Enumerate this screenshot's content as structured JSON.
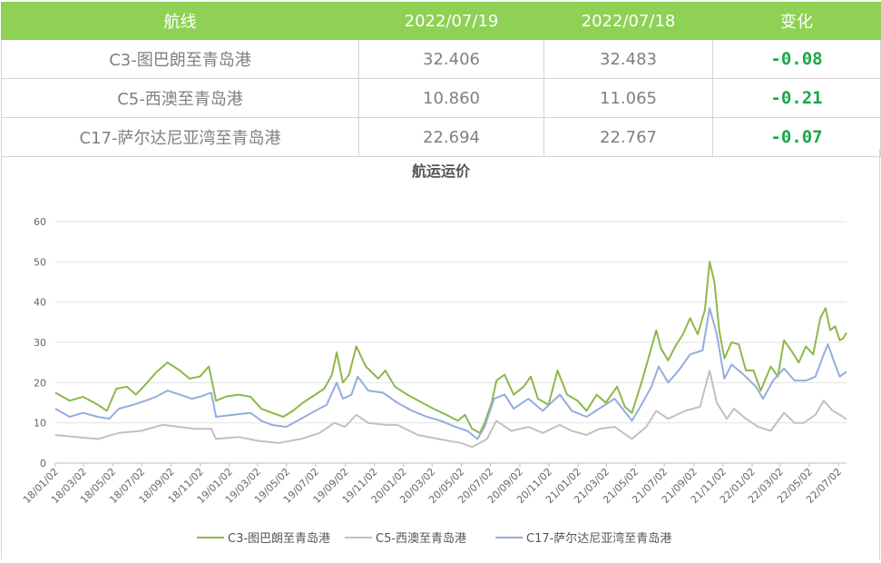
{
  "table": {
    "headers": [
      "航线",
      "2022/07/19",
      "2022/07/18",
      "变化"
    ],
    "rows": [
      {
        "route": "C3-图巴朗至青岛港",
        "current": "32.406",
        "previous": "32.483",
        "change": "-0.08"
      },
      {
        "route": "C5-西澳至青岛港",
        "current": "10.860",
        "previous": "11.065",
        "change": "-0.21"
      },
      {
        "route": "C17-萨尔达尼亚湾至青岛港",
        "current": "22.694",
        "previous": "22.767",
        "change": "-0.07"
      }
    ],
    "header_color": "#8ed155",
    "change_color": "#18a84a"
  },
  "chart_data": {
    "type": "line",
    "title": "航运运价",
    "ylim": [
      0,
      60
    ],
    "yticks": [
      "0",
      "10",
      "20",
      "30",
      "40",
      "50",
      "60"
    ],
    "xticks": [
      "18/01/02",
      "18/03/02",
      "18/05/02",
      "18/07/02",
      "18/09/02",
      "18/11/02",
      "19/01/02",
      "19/03/02",
      "19/05/02",
      "19/07/02",
      "19/09/02",
      "19/11/02",
      "20/01/02",
      "20/03/02",
      "20/05/02",
      "20/07/02",
      "20/09/02",
      "20/11/02",
      "21/01/02",
      "21/03/02",
      "21/05/02",
      "21/07/02",
      "21/09/02",
      "21/11/02",
      "22/01/02",
      "22/03/02",
      "22/05/02",
      "22/07/02"
    ],
    "x_start": "2018-01-02",
    "x_end": "2022-07-19",
    "grid": true,
    "legend_position": "bottom",
    "series": [
      {
        "name": "C3-图巴朗至青岛港",
        "color": "#8db84a",
        "points": [
          [
            "2018-01-02",
            17.5
          ],
          [
            "2018-02-01",
            15.5
          ],
          [
            "2018-03-01",
            16.5
          ],
          [
            "2018-04-01",
            14.5
          ],
          [
            "2018-04-20",
            13.0
          ],
          [
            "2018-05-10",
            18.5
          ],
          [
            "2018-06-01",
            19.0
          ],
          [
            "2018-06-20",
            17.0
          ],
          [
            "2018-07-10",
            19.5
          ],
          [
            "2018-08-01",
            22.5
          ],
          [
            "2018-08-25",
            25.0
          ],
          [
            "2018-09-20",
            23.0
          ],
          [
            "2018-10-10",
            21.0
          ],
          [
            "2018-11-01",
            21.5
          ],
          [
            "2018-11-20",
            24.0
          ],
          [
            "2018-12-05",
            15.5
          ],
          [
            "2018-12-25",
            16.5
          ],
          [
            "2019-01-20",
            17.0
          ],
          [
            "2019-02-15",
            16.5
          ],
          [
            "2019-03-10",
            13.5
          ],
          [
            "2019-04-01",
            12.5
          ],
          [
            "2019-04-25",
            11.5
          ],
          [
            "2019-05-15",
            13.0
          ],
          [
            "2019-06-05",
            15.0
          ],
          [
            "2019-07-01",
            17.0
          ],
          [
            "2019-07-20",
            18.5
          ],
          [
            "2019-08-05",
            22.0
          ],
          [
            "2019-08-15",
            27.5
          ],
          [
            "2019-08-28",
            20.0
          ],
          [
            "2019-09-10",
            22.0
          ],
          [
            "2019-09-25",
            29.0
          ],
          [
            "2019-10-15",
            24.0
          ],
          [
            "2019-11-10",
            21.0
          ],
          [
            "2019-11-25",
            23.0
          ],
          [
            "2019-12-15",
            19.0
          ],
          [
            "2020-01-10",
            17.0
          ],
          [
            "2020-02-10",
            15.0
          ],
          [
            "2020-03-05",
            13.5
          ],
          [
            "2020-04-01",
            12.0
          ],
          [
            "2020-04-25",
            10.5
          ],
          [
            "2020-05-10",
            12.0
          ],
          [
            "2020-05-25",
            8.5
          ],
          [
            "2020-06-10",
            7.5
          ],
          [
            "2020-06-20",
            10.0
          ],
          [
            "2020-07-05",
            15.0
          ],
          [
            "2020-07-15",
            20.5
          ],
          [
            "2020-08-01",
            22.0
          ],
          [
            "2020-08-20",
            17.0
          ],
          [
            "2020-09-10",
            19.0
          ],
          [
            "2020-09-25",
            21.5
          ],
          [
            "2020-10-10",
            16.0
          ],
          [
            "2020-11-01",
            14.5
          ],
          [
            "2020-11-20",
            23.0
          ],
          [
            "2020-12-10",
            17.0
          ],
          [
            "2021-01-01",
            15.5
          ],
          [
            "2021-01-20",
            13.0
          ],
          [
            "2021-02-10",
            17.0
          ],
          [
            "2021-03-01",
            15.0
          ],
          [
            "2021-03-25",
            19.0
          ],
          [
            "2021-04-10",
            14.0
          ],
          [
            "2021-04-25",
            12.5
          ],
          [
            "2021-05-15",
            20.0
          ],
          [
            "2021-06-01",
            27.0
          ],
          [
            "2021-06-15",
            33.0
          ],
          [
            "2021-06-25",
            28.5
          ],
          [
            "2021-07-10",
            25.5
          ],
          [
            "2021-07-25",
            29.0
          ],
          [
            "2021-08-10",
            32.0
          ],
          [
            "2021-08-25",
            36.0
          ],
          [
            "2021-09-10",
            32.0
          ],
          [
            "2021-09-25",
            38.0
          ],
          [
            "2021-10-05",
            50.0
          ],
          [
            "2021-10-15",
            45.0
          ],
          [
            "2021-10-25",
            33.0
          ],
          [
            "2021-11-05",
            26.0
          ],
          [
            "2021-11-20",
            30.0
          ],
          [
            "2021-12-05",
            29.5
          ],
          [
            "2021-12-20",
            23.0
          ],
          [
            "2022-01-05",
            23.0
          ],
          [
            "2022-01-20",
            18.0
          ],
          [
            "2022-02-10",
            24.0
          ],
          [
            "2022-02-25",
            21.5
          ],
          [
            "2022-03-10",
            30.5
          ],
          [
            "2022-03-25",
            28.0
          ],
          [
            "2022-04-10",
            25.0
          ],
          [
            "2022-04-25",
            29.0
          ],
          [
            "2022-05-10",
            27.0
          ],
          [
            "2022-05-25",
            36.0
          ],
          [
            "2022-06-05",
            38.5
          ],
          [
            "2022-06-15",
            33.0
          ],
          [
            "2022-06-25",
            34.0
          ],
          [
            "2022-07-05",
            30.5
          ],
          [
            "2022-07-12",
            31.0
          ],
          [
            "2022-07-19",
            32.4
          ]
        ]
      },
      {
        "name": "C5-西澳至青岛港",
        "color": "#c1c1c1",
        "points": [
          [
            "2018-01-02",
            7.0
          ],
          [
            "2018-02-15",
            6.5
          ],
          [
            "2018-04-01",
            6.0
          ],
          [
            "2018-05-15",
            7.5
          ],
          [
            "2018-07-01",
            8.0
          ],
          [
            "2018-08-15",
            9.5
          ],
          [
            "2018-09-20",
            9.0
          ],
          [
            "2018-10-20",
            8.5
          ],
          [
            "2018-11-25",
            8.5
          ],
          [
            "2018-12-05",
            6.0
          ],
          [
            "2019-01-20",
            6.5
          ],
          [
            "2019-03-05",
            5.5
          ],
          [
            "2019-04-15",
            5.0
          ],
          [
            "2019-06-01",
            6.0
          ],
          [
            "2019-07-10",
            7.5
          ],
          [
            "2019-08-10",
            10.0
          ],
          [
            "2019-09-01",
            9.0
          ],
          [
            "2019-09-25",
            12.0
          ],
          [
            "2019-10-20",
            10.0
          ],
          [
            "2019-11-25",
            9.5
          ],
          [
            "2019-12-20",
            9.5
          ],
          [
            "2020-02-01",
            7.0
          ],
          [
            "2020-03-15",
            6.0
          ],
          [
            "2020-05-01",
            5.0
          ],
          [
            "2020-05-25",
            4.0
          ],
          [
            "2020-06-10",
            5.0
          ],
          [
            "2020-06-25",
            6.0
          ],
          [
            "2020-07-15",
            10.5
          ],
          [
            "2020-08-15",
            8.0
          ],
          [
            "2020-09-20",
            9.0
          ],
          [
            "2020-10-20",
            7.5
          ],
          [
            "2020-11-25",
            9.5
          ],
          [
            "2020-12-20",
            8.0
          ],
          [
            "2021-01-20",
            7.0
          ],
          [
            "2021-02-15",
            8.5
          ],
          [
            "2021-03-20",
            9.0
          ],
          [
            "2021-04-25",
            6.0
          ],
          [
            "2021-05-25",
            9.0
          ],
          [
            "2021-06-15",
            13.0
          ],
          [
            "2021-07-10",
            11.0
          ],
          [
            "2021-08-15",
            13.0
          ],
          [
            "2021-09-15",
            14.0
          ],
          [
            "2021-10-05",
            23.0
          ],
          [
            "2021-10-20",
            15.0
          ],
          [
            "2021-11-10",
            11.0
          ],
          [
            "2021-11-25",
            13.5
          ],
          [
            "2021-12-20",
            11.0
          ],
          [
            "2022-01-15",
            9.0
          ],
          [
            "2022-02-10",
            8.0
          ],
          [
            "2022-03-10",
            12.5
          ],
          [
            "2022-04-01",
            10.0
          ],
          [
            "2022-04-20",
            10.0
          ],
          [
            "2022-05-15",
            12.0
          ],
          [
            "2022-06-01",
            15.5
          ],
          [
            "2022-06-20",
            13.0
          ],
          [
            "2022-07-05",
            12.0
          ],
          [
            "2022-07-19",
            10.9
          ]
        ]
      },
      {
        "name": "C17-萨尔达尼亚湾至青岛港",
        "color": "#93aedb",
        "points": [
          [
            "2018-01-02",
            13.5
          ],
          [
            "2018-02-01",
            11.5
          ],
          [
            "2018-03-01",
            12.5
          ],
          [
            "2018-04-01",
            11.5
          ],
          [
            "2018-04-25",
            11.0
          ],
          [
            "2018-05-15",
            13.5
          ],
          [
            "2018-06-15",
            14.5
          ],
          [
            "2018-07-10",
            15.5
          ],
          [
            "2018-08-01",
            16.5
          ],
          [
            "2018-08-25",
            18.0
          ],
          [
            "2018-09-20",
            17.0
          ],
          [
            "2018-10-15",
            16.0
          ],
          [
            "2018-11-01",
            16.5
          ],
          [
            "2018-11-25",
            17.5
          ],
          [
            "2018-12-05",
            11.5
          ],
          [
            "2019-01-10",
            12.0
          ],
          [
            "2019-02-15",
            12.5
          ],
          [
            "2019-03-10",
            10.5
          ],
          [
            "2019-04-01",
            9.5
          ],
          [
            "2019-05-01",
            9.0
          ],
          [
            "2019-06-01",
            11.0
          ],
          [
            "2019-07-01",
            13.0
          ],
          [
            "2019-07-25",
            14.5
          ],
          [
            "2019-08-15",
            20.0
          ],
          [
            "2019-08-28",
            16.0
          ],
          [
            "2019-09-15",
            17.0
          ],
          [
            "2019-09-28",
            21.5
          ],
          [
            "2019-10-20",
            18.0
          ],
          [
            "2019-11-20",
            17.5
          ],
          [
            "2019-12-20",
            15.0
          ],
          [
            "2020-01-20",
            13.0
          ],
          [
            "2020-02-20",
            11.5
          ],
          [
            "2020-03-20",
            10.5
          ],
          [
            "2020-04-20",
            9.0
          ],
          [
            "2020-05-15",
            8.0
          ],
          [
            "2020-06-05",
            6.0
          ],
          [
            "2020-06-20",
            9.0
          ],
          [
            "2020-07-10",
            16.0
          ],
          [
            "2020-08-01",
            17.0
          ],
          [
            "2020-08-20",
            13.5
          ],
          [
            "2020-09-20",
            16.0
          ],
          [
            "2020-10-20",
            13.0
          ],
          [
            "2020-11-25",
            17.0
          ],
          [
            "2020-12-20",
            13.0
          ],
          [
            "2021-01-20",
            11.5
          ],
          [
            "2021-02-15",
            13.5
          ],
          [
            "2021-03-20",
            16.0
          ],
          [
            "2021-04-25",
            10.5
          ],
          [
            "2021-05-15",
            14.5
          ],
          [
            "2021-06-05",
            19.0
          ],
          [
            "2021-06-20",
            24.0
          ],
          [
            "2021-07-10",
            20.0
          ],
          [
            "2021-08-01",
            23.0
          ],
          [
            "2021-08-25",
            27.0
          ],
          [
            "2021-09-20",
            28.0
          ],
          [
            "2021-10-05",
            38.5
          ],
          [
            "2021-10-20",
            32.0
          ],
          [
            "2021-11-05",
            21.0
          ],
          [
            "2021-11-20",
            24.5
          ],
          [
            "2021-12-15",
            22.0
          ],
          [
            "2022-01-10",
            19.0
          ],
          [
            "2022-01-25",
            16.0
          ],
          [
            "2022-02-15",
            20.5
          ],
          [
            "2022-03-10",
            23.5
          ],
          [
            "2022-04-01",
            20.5
          ],
          [
            "2022-04-25",
            20.5
          ],
          [
            "2022-05-15",
            21.5
          ],
          [
            "2022-06-01",
            27.0
          ],
          [
            "2022-06-10",
            29.5
          ],
          [
            "2022-06-25",
            24.5
          ],
          [
            "2022-07-05",
            21.5
          ],
          [
            "2022-07-19",
            22.7
          ]
        ]
      }
    ]
  }
}
